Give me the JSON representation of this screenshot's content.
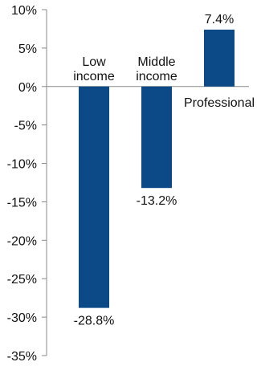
{
  "chart_data": {
    "type": "bar",
    "title": "",
    "xlabel": "",
    "ylabel": "",
    "ylim": [
      -35,
      10
    ],
    "y_ticks": [
      10,
      5,
      0,
      -5,
      -10,
      -15,
      -20,
      -25,
      -30,
      -35
    ],
    "y_tick_labels": [
      "10%",
      "5%",
      "0%",
      "-5%",
      "-10%",
      "-15%",
      "-20%",
      "-25%",
      "-30%",
      "-35%"
    ],
    "grid": false,
    "legend": "none",
    "categories": [
      {
        "lines": [
          "Low",
          "income"
        ]
      },
      {
        "lines": [
          "Middle",
          "income"
        ]
      },
      {
        "lines": [
          "Professional"
        ]
      }
    ],
    "values": [
      -28.8,
      -13.2,
      7.4
    ],
    "value_labels": [
      "-28.8%",
      "-13.2%",
      "7.4%"
    ],
    "bar_color": "#0b4a86",
    "axis_color": "#888888"
  }
}
